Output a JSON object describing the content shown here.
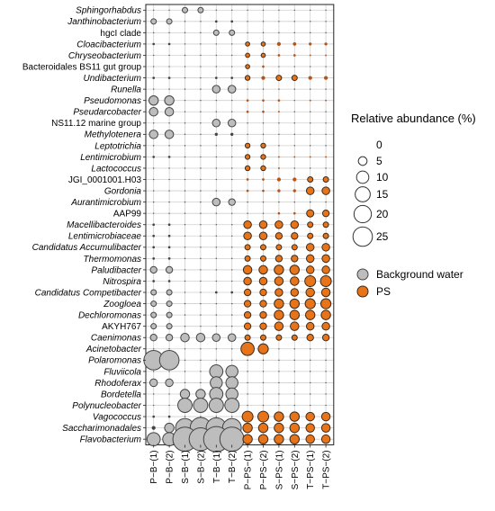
{
  "chart_data": {
    "type": "bubble-matrix",
    "legend": {
      "size_title": "Relative abundance (%)",
      "size_values": [
        0,
        5,
        10,
        15,
        20,
        25
      ],
      "groups": [
        {
          "name": "Background water",
          "color": "#bdbdbd"
        },
        {
          "name": "PS",
          "color": "#e8741a"
        }
      ]
    },
    "samples": [
      "P−B−(1)",
      "P−B−(2)",
      "S−B−(1)",
      "S−B−(2)",
      "T−B−(1)",
      "T−B−(2)",
      "P−PS−(1)",
      "P−PS−(2)",
      "S−PS−(1)",
      "S−PS−(2)",
      "T−PS−(1)",
      "T−PS−(2)"
    ],
    "taxa": [
      {
        "label": "Sphingorhabdus",
        "italic": true,
        "values": [
          0,
          0,
          1,
          1,
          0,
          0,
          0,
          0,
          0,
          0,
          0,
          0
        ]
      },
      {
        "label": "Janthinobacterium",
        "italic": true,
        "values": [
          1,
          1,
          0,
          0,
          0.2,
          0.2,
          0,
          0,
          0,
          0,
          0,
          0
        ]
      },
      {
        "label": "hgcI clade",
        "italic": false,
        "values": [
          0,
          0,
          0,
          0,
          1,
          1,
          0,
          0,
          0,
          0,
          0,
          0
        ]
      },
      {
        "label": "Cloacibacterium",
        "italic": true,
        "values": [
          0.2,
          0.2,
          0,
          0,
          0,
          0,
          0.6,
          0.6,
          0.5,
          0.4,
          0.3,
          0.3
        ]
      },
      {
        "label": "Chryseobacterium",
        "italic": true,
        "values": [
          0,
          0,
          0,
          0,
          0,
          0,
          0.6,
          0.6,
          0.2,
          0.2,
          0.1,
          0.1
        ]
      },
      {
        "label": "Bacteroidales BS11 gut group",
        "italic": false,
        "values": [
          0,
          0,
          0,
          0,
          0,
          0,
          0.6,
          0.2,
          0,
          0,
          0,
          0
        ]
      },
      {
        "label": "Undibacterium",
        "italic": true,
        "values": [
          0.2,
          0.2,
          0,
          0,
          0.2,
          0.2,
          0.8,
          0.5,
          1,
          1,
          0.5,
          0.5
        ]
      },
      {
        "label": "Runella",
        "italic": true,
        "values": [
          0,
          0,
          0,
          0,
          2,
          2,
          0,
          0,
          0,
          0,
          0,
          0
        ]
      },
      {
        "label": "Pseudomonas",
        "italic": true,
        "values": [
          3,
          3,
          0,
          0,
          0,
          0,
          0.2,
          0.2,
          0.2,
          0,
          0.1,
          0.1
        ]
      },
      {
        "label": "Pseudarcobacter",
        "italic": true,
        "values": [
          2.5,
          2.5,
          0,
          0,
          0,
          0,
          0.2,
          0.2,
          0.1,
          0,
          0,
          0
        ]
      },
      {
        "label": "NS11.12 marine group",
        "italic": false,
        "values": [
          0,
          0,
          0,
          0,
          2,
          2,
          0,
          0,
          0,
          0,
          0,
          0
        ]
      },
      {
        "label": "Methylotenera",
        "italic": true,
        "values": [
          2.5,
          2.5,
          0,
          0,
          0.3,
          0.3,
          0,
          0,
          0,
          0,
          0,
          0
        ]
      },
      {
        "label": "Leptotrichia",
        "italic": true,
        "values": [
          0,
          0,
          0,
          0,
          0,
          0,
          0.8,
          0.8,
          0,
          0,
          0,
          0
        ]
      },
      {
        "label": "Lentimicrobium",
        "italic": true,
        "values": [
          0.2,
          0.2,
          0,
          0,
          0,
          0,
          0.8,
          0.8,
          0.1,
          0.1,
          0.1,
          0.1
        ]
      },
      {
        "label": "Lactococcus",
        "italic": true,
        "values": [
          0,
          0,
          0,
          0,
          0,
          0,
          0.8,
          0.8,
          0.1,
          0,
          0,
          0
        ]
      },
      {
        "label": "JGI_0001001.H03",
        "italic": false,
        "values": [
          0,
          0,
          0,
          0,
          0,
          0,
          0.2,
          0.2,
          0.5,
          0.5,
          1,
          1
        ]
      },
      {
        "label": "Gordonia",
        "italic": true,
        "values": [
          0,
          0,
          0,
          0,
          0,
          0,
          0.2,
          0.2,
          0.3,
          0.3,
          2,
          2
        ]
      },
      {
        "label": "Aurantimicrobium",
        "italic": true,
        "values": [
          0,
          0,
          0,
          0,
          2,
          1.5,
          0,
          0,
          0,
          0,
          0,
          0
        ]
      },
      {
        "label": "AAP99",
        "italic": false,
        "values": [
          0,
          0,
          0,
          0,
          0,
          0,
          0,
          0,
          0.2,
          0.2,
          1.8,
          1.5
        ]
      },
      {
        "label": "Macellibacteroides",
        "italic": true,
        "values": [
          0.2,
          0.2,
          0,
          0,
          0,
          0,
          2,
          2,
          2,
          2,
          1,
          1
        ]
      },
      {
        "label": "Lentimicrobiaceae",
        "italic": true,
        "values": [
          0.2,
          0.2,
          0,
          0,
          0,
          0,
          2,
          2,
          1.5,
          1.5,
          1,
          1
        ]
      },
      {
        "label": "Candidatus Accumulibacter",
        "italic": true,
        "values": [
          0.2,
          0.2,
          0,
          0,
          0,
          0,
          1,
          1,
          1,
          1,
          2,
          2
        ]
      },
      {
        "label": "Thermomonas",
        "italic": true,
        "values": [
          0.2,
          0.2,
          0,
          0,
          0,
          0,
          1,
          1,
          1.5,
          1.5,
          2,
          2
        ]
      },
      {
        "label": "Paludibacter",
        "italic": true,
        "values": [
          1.5,
          1.5,
          0,
          0,
          0,
          0,
          2.5,
          2.5,
          3,
          3,
          2,
          2
        ]
      },
      {
        "label": "Nitrospira",
        "italic": true,
        "values": [
          0.2,
          0.2,
          0,
          0,
          0,
          0,
          2,
          2,
          2.5,
          2.5,
          4,
          4
        ]
      },
      {
        "label": "Candidatus Competibacter",
        "italic": true,
        "values": [
          1,
          1,
          0,
          0,
          0.2,
          0.2,
          1.5,
          1.5,
          2,
          2,
          2.5,
          2.5
        ]
      },
      {
        "label": "Zoogloea",
        "italic": true,
        "values": [
          1,
          1,
          0,
          0,
          0,
          0,
          1.5,
          1.5,
          3,
          3,
          3.5,
          3.5
        ]
      },
      {
        "label": "Dechloromonas",
        "italic": true,
        "values": [
          1,
          1,
          0,
          0,
          0,
          0,
          1.5,
          1.5,
          3,
          3,
          3,
          3
        ]
      },
      {
        "label": "AKYH767",
        "italic": false,
        "values": [
          1,
          1,
          0,
          0,
          0,
          0,
          1.5,
          1.5,
          2.5,
          2.5,
          2,
          2
        ]
      },
      {
        "label": "Caenimonas",
        "italic": true,
        "values": [
          1.5,
          1.5,
          2.5,
          2.5,
          2,
          2,
          1,
          1,
          1,
          1,
          1.5,
          1.5
        ]
      },
      {
        "label": "Acinetobacter",
        "italic": true,
        "values": [
          0,
          0,
          0,
          0,
          0,
          0,
          6,
          3.5,
          0,
          0,
          0,
          0
        ]
      },
      {
        "label": "Polaromonas",
        "italic": true,
        "values": [
          13,
          13,
          0,
          0,
          0,
          0,
          0,
          0,
          0,
          0,
          0,
          0
        ]
      },
      {
        "label": "Fluviicola",
        "italic": true,
        "values": [
          0,
          0,
          0,
          0,
          6,
          5,
          0,
          0,
          0,
          0,
          0,
          0
        ]
      },
      {
        "label": "Rhodoferax",
        "italic": true,
        "values": [
          2,
          2,
          0,
          0,
          5,
          5,
          0,
          0,
          0,
          0,
          0,
          0
        ]
      },
      {
        "label": "Bordetella",
        "italic": true,
        "values": [
          0,
          0,
          3,
          3,
          6,
          5,
          0,
          0,
          0,
          0,
          0,
          0
        ]
      },
      {
        "label": "Polynucleobacter",
        "italic": true,
        "values": [
          0,
          0,
          7,
          7,
          7,
          7,
          0,
          0,
          0,
          0,
          0,
          0
        ]
      },
      {
        "label": "Vagococcus",
        "italic": true,
        "values": [
          0.2,
          0.2,
          0,
          0,
          0,
          0,
          4,
          4,
          3,
          3,
          2.5,
          2.5
        ]
      },
      {
        "label": "Saccharimonadales",
        "italic": true,
        "values": [
          0.5,
          3,
          12,
          15,
          14,
          12,
          3,
          3,
          3,
          3,
          2.5,
          2.5
        ]
      },
      {
        "label": "Flavobacterium",
        "italic": true,
        "values": [
          6,
          6,
          20,
          18,
          22,
          20,
          3,
          3,
          3,
          3,
          2.5,
          2.5
        ]
      }
    ]
  }
}
